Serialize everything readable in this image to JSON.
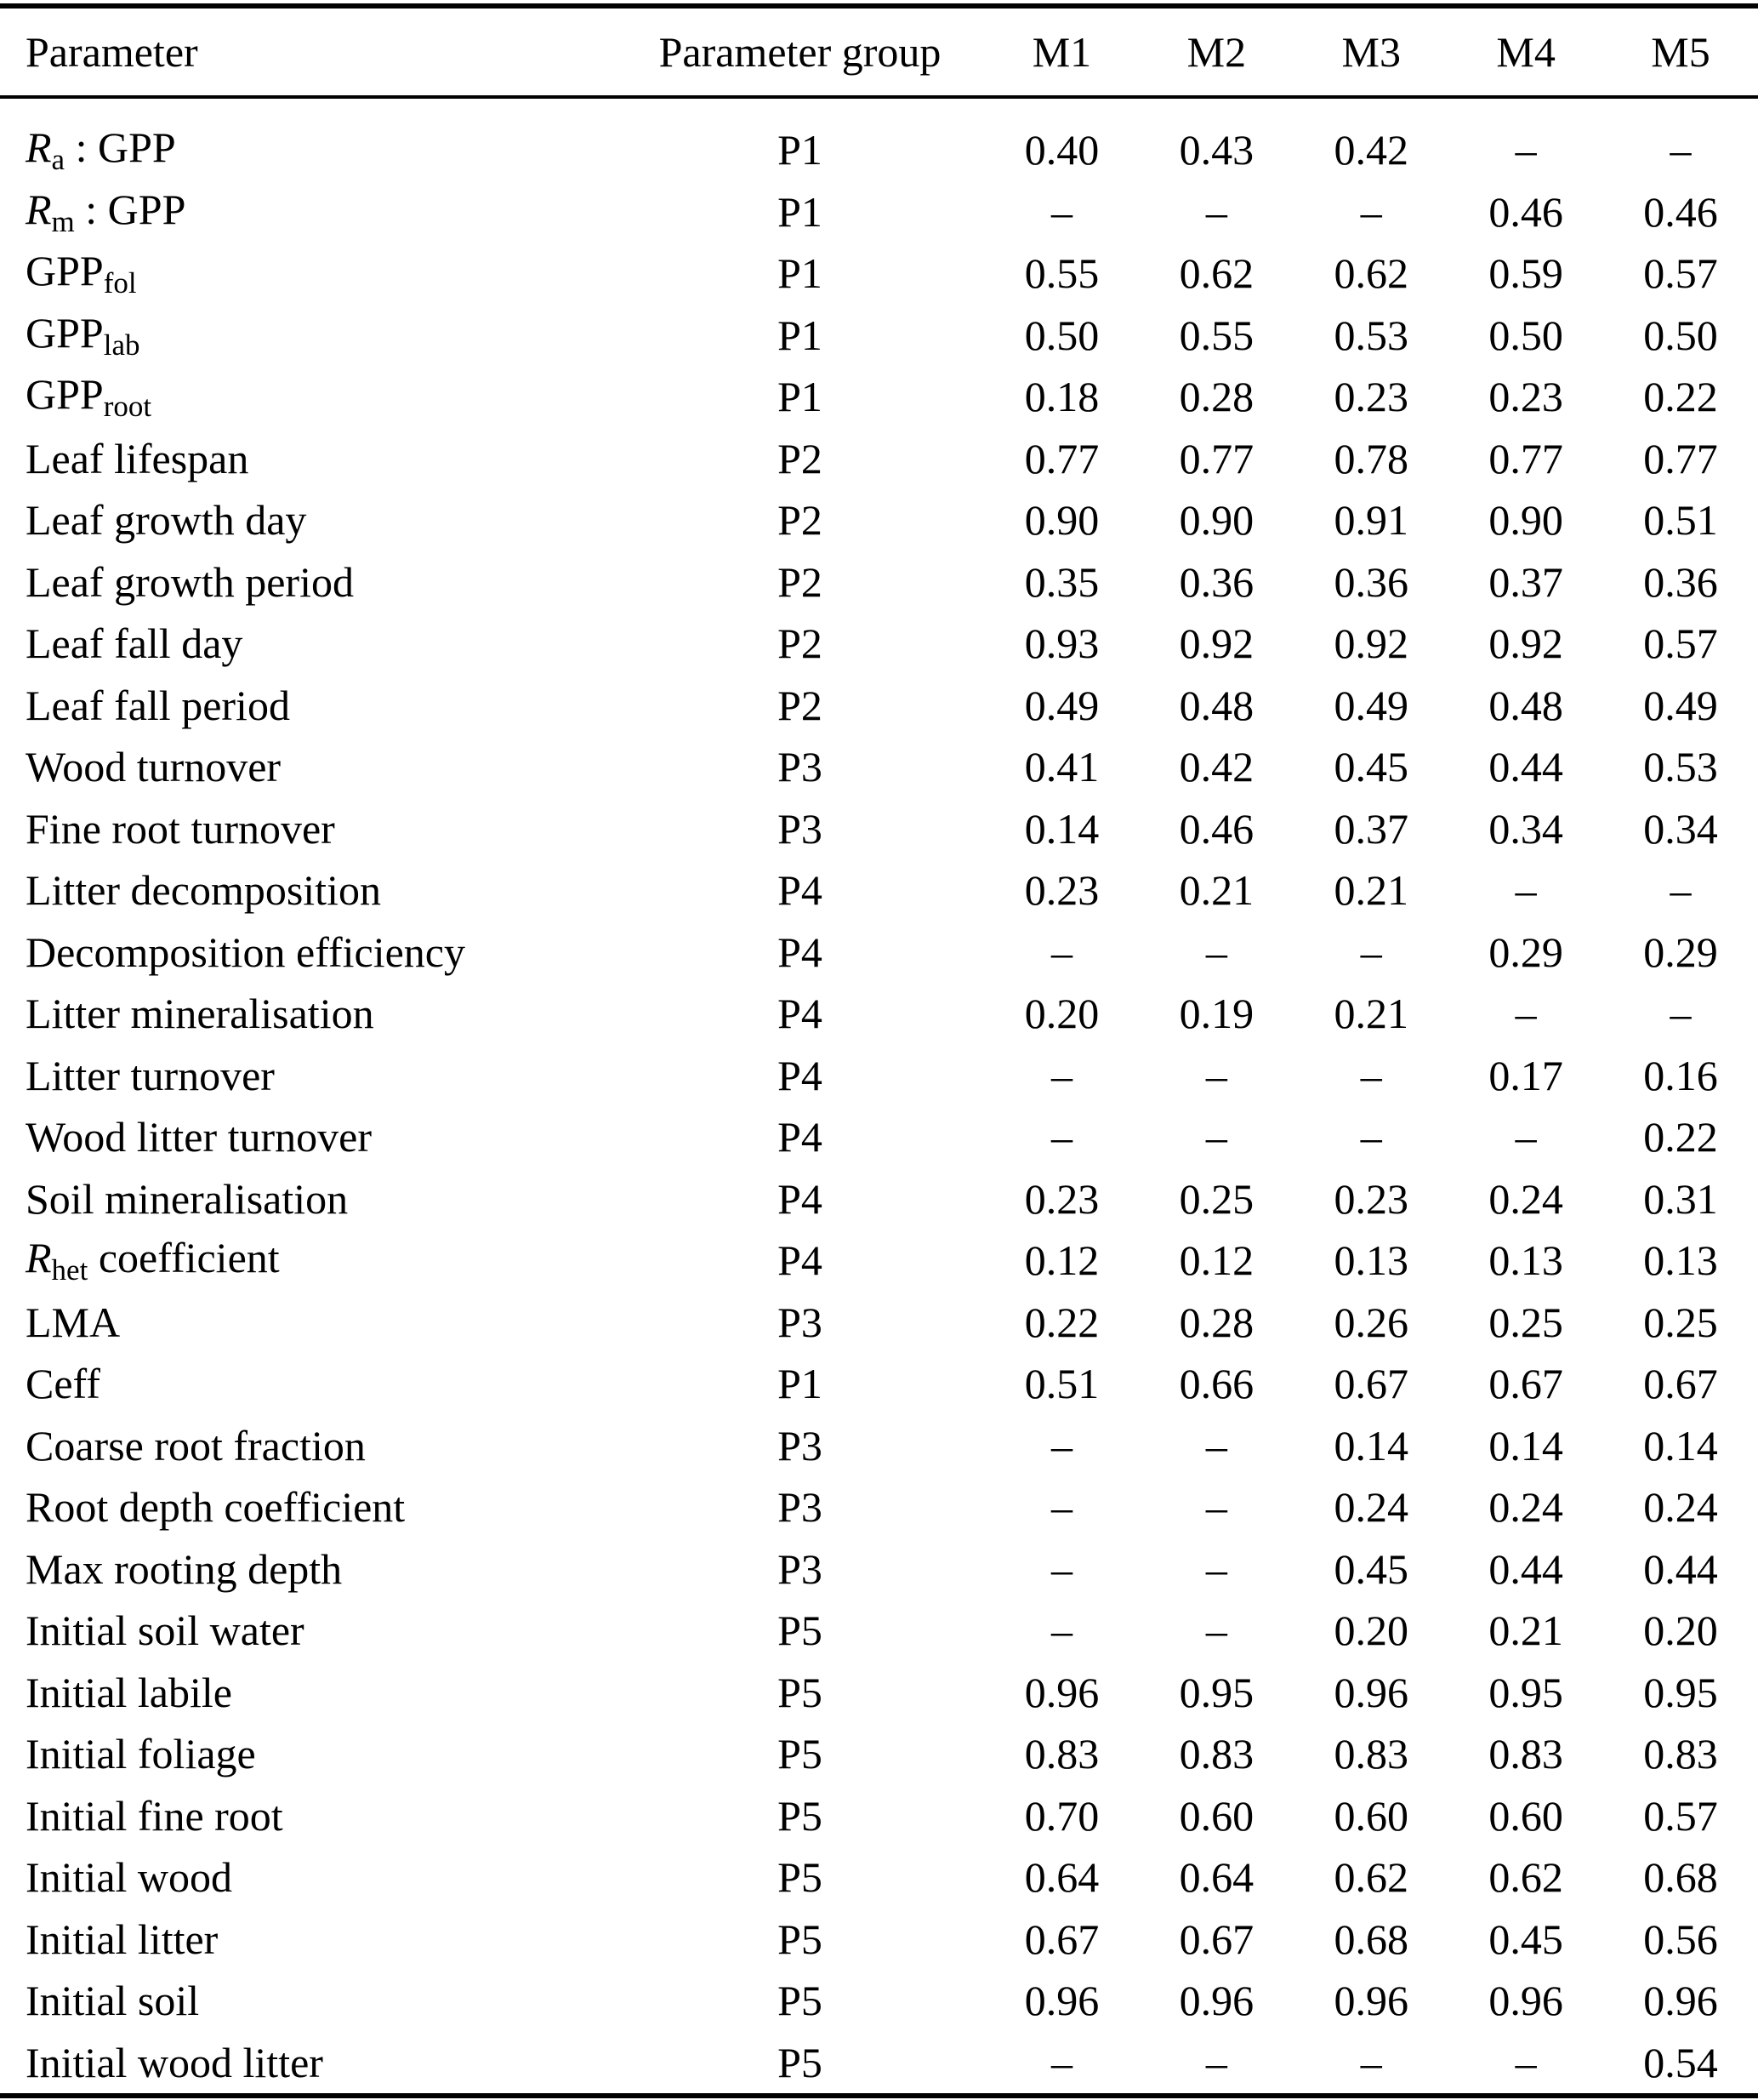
{
  "colors": {
    "text": "#000000",
    "background": "#ffffff",
    "rule": "#000000"
  },
  "table": {
    "columns": [
      "Parameter",
      "Parameter group",
      "M1",
      "M2",
      "M3",
      "M4",
      "M5"
    ],
    "rows": [
      {
        "name": [
          {
            "t": "R",
            "s": "it"
          },
          {
            "t": "a",
            "s": "sub"
          },
          {
            "t": " : GPP",
            "s": ""
          }
        ],
        "group": "P1",
        "values": [
          "0.40",
          "0.43",
          "0.42",
          "–",
          "–"
        ]
      },
      {
        "name": [
          {
            "t": "R",
            "s": "it"
          },
          {
            "t": "m",
            "s": "sub"
          },
          {
            "t": " : GPP",
            "s": ""
          }
        ],
        "group": "P1",
        "values": [
          "–",
          "–",
          "–",
          "0.46",
          "0.46"
        ]
      },
      {
        "name": [
          {
            "t": "GPP",
            "s": ""
          },
          {
            "t": "fol",
            "s": "sub"
          }
        ],
        "group": "P1",
        "values": [
          "0.55",
          "0.62",
          "0.62",
          "0.59",
          "0.57"
        ]
      },
      {
        "name": [
          {
            "t": "GPP",
            "s": ""
          },
          {
            "t": "lab",
            "s": "sub"
          }
        ],
        "group": "P1",
        "values": [
          "0.50",
          "0.55",
          "0.53",
          "0.50",
          "0.50"
        ]
      },
      {
        "name": [
          {
            "t": "GPP",
            "s": ""
          },
          {
            "t": "root",
            "s": "sub"
          }
        ],
        "group": "P1",
        "values": [
          "0.18",
          "0.28",
          "0.23",
          "0.23",
          "0.22"
        ]
      },
      {
        "name": [
          {
            "t": "Leaf lifespan",
            "s": ""
          }
        ],
        "group": "P2",
        "values": [
          "0.77",
          "0.77",
          "0.78",
          "0.77",
          "0.77"
        ]
      },
      {
        "name": [
          {
            "t": "Leaf growth day",
            "s": ""
          }
        ],
        "group": "P2",
        "values": [
          "0.90",
          "0.90",
          "0.91",
          "0.90",
          "0.51"
        ]
      },
      {
        "name": [
          {
            "t": "Leaf growth period",
            "s": ""
          }
        ],
        "group": "P2",
        "values": [
          "0.35",
          "0.36",
          "0.36",
          "0.37",
          "0.36"
        ]
      },
      {
        "name": [
          {
            "t": "Leaf fall day",
            "s": ""
          }
        ],
        "group": "P2",
        "values": [
          "0.93",
          "0.92",
          "0.92",
          "0.92",
          "0.57"
        ]
      },
      {
        "name": [
          {
            "t": "Leaf fall period",
            "s": ""
          }
        ],
        "group": "P2",
        "values": [
          "0.49",
          "0.48",
          "0.49",
          "0.48",
          "0.49"
        ]
      },
      {
        "name": [
          {
            "t": "Wood turnover",
            "s": ""
          }
        ],
        "group": "P3",
        "values": [
          "0.41",
          "0.42",
          "0.45",
          "0.44",
          "0.53"
        ]
      },
      {
        "name": [
          {
            "t": "Fine root turnover",
            "s": ""
          }
        ],
        "group": "P3",
        "values": [
          "0.14",
          "0.46",
          "0.37",
          "0.34",
          "0.34"
        ]
      },
      {
        "name": [
          {
            "t": "Litter decomposition",
            "s": ""
          }
        ],
        "group": "P4",
        "values": [
          "0.23",
          "0.21",
          "0.21",
          "–",
          "–"
        ]
      },
      {
        "name": [
          {
            "t": "Decomposition efficiency",
            "s": ""
          }
        ],
        "group": "P4",
        "values": [
          "–",
          "–",
          "–",
          "0.29",
          "0.29"
        ]
      },
      {
        "name": [
          {
            "t": "Litter mineralisation",
            "s": ""
          }
        ],
        "group": "P4",
        "values": [
          "0.20",
          "0.19",
          "0.21",
          "–",
          "–"
        ]
      },
      {
        "name": [
          {
            "t": "Litter turnover",
            "s": ""
          }
        ],
        "group": "P4",
        "values": [
          "–",
          "–",
          "–",
          "0.17",
          "0.16"
        ]
      },
      {
        "name": [
          {
            "t": "Wood litter turnover",
            "s": ""
          }
        ],
        "group": "P4",
        "values": [
          "–",
          "–",
          "–",
          "–",
          "0.22"
        ]
      },
      {
        "name": [
          {
            "t": "Soil mineralisation",
            "s": ""
          }
        ],
        "group": "P4",
        "values": [
          "0.23",
          "0.25",
          "0.23",
          "0.24",
          "0.31"
        ]
      },
      {
        "name": [
          {
            "t": "R",
            "s": "it"
          },
          {
            "t": "het",
            "s": "sub"
          },
          {
            "t": " coefficient",
            "s": ""
          }
        ],
        "group": "P4",
        "values": [
          "0.12",
          "0.12",
          "0.13",
          "0.13",
          "0.13"
        ]
      },
      {
        "name": [
          {
            "t": "LMA",
            "s": ""
          }
        ],
        "group": "P3",
        "values": [
          "0.22",
          "0.28",
          "0.26",
          "0.25",
          "0.25"
        ]
      },
      {
        "name": [
          {
            "t": "Ceff",
            "s": ""
          }
        ],
        "group": "P1",
        "values": [
          "0.51",
          "0.66",
          "0.67",
          "0.67",
          "0.67"
        ]
      },
      {
        "name": [
          {
            "t": "Coarse root fraction",
            "s": ""
          }
        ],
        "group": "P3",
        "values": [
          "–",
          "–",
          "0.14",
          "0.14",
          "0.14"
        ]
      },
      {
        "name": [
          {
            "t": "Root depth coefficient",
            "s": ""
          }
        ],
        "group": "P3",
        "values": [
          "–",
          "–",
          "0.24",
          "0.24",
          "0.24"
        ]
      },
      {
        "name": [
          {
            "t": "Max rooting depth",
            "s": ""
          }
        ],
        "group": "P3",
        "values": [
          "–",
          "–",
          "0.45",
          "0.44",
          "0.44"
        ]
      },
      {
        "name": [
          {
            "t": "Initial soil water",
            "s": ""
          }
        ],
        "group": "P5",
        "values": [
          "–",
          "–",
          "0.20",
          "0.21",
          "0.20"
        ]
      },
      {
        "name": [
          {
            "t": "Initial labile",
            "s": ""
          }
        ],
        "group": "P5",
        "values": [
          "0.96",
          "0.95",
          "0.96",
          "0.95",
          "0.95"
        ]
      },
      {
        "name": [
          {
            "t": "Initial foliage",
            "s": ""
          }
        ],
        "group": "P5",
        "values": [
          "0.83",
          "0.83",
          "0.83",
          "0.83",
          "0.83"
        ]
      },
      {
        "name": [
          {
            "t": "Initial fine root",
            "s": ""
          }
        ],
        "group": "P5",
        "values": [
          "0.70",
          "0.60",
          "0.60",
          "0.60",
          "0.57"
        ]
      },
      {
        "name": [
          {
            "t": "Initial wood",
            "s": ""
          }
        ],
        "group": "P5",
        "values": [
          "0.64",
          "0.64",
          "0.62",
          "0.62",
          "0.68"
        ]
      },
      {
        "name": [
          {
            "t": "Initial litter",
            "s": ""
          }
        ],
        "group": "P5",
        "values": [
          "0.67",
          "0.67",
          "0.68",
          "0.45",
          "0.56"
        ]
      },
      {
        "name": [
          {
            "t": "Initial soil",
            "s": ""
          }
        ],
        "group": "P5",
        "values": [
          "0.96",
          "0.96",
          "0.96",
          "0.96",
          "0.96"
        ]
      },
      {
        "name": [
          {
            "t": "Initial wood litter",
            "s": ""
          }
        ],
        "group": "P5",
        "values": [
          "–",
          "–",
          "–",
          "–",
          "0.54"
        ]
      }
    ]
  }
}
